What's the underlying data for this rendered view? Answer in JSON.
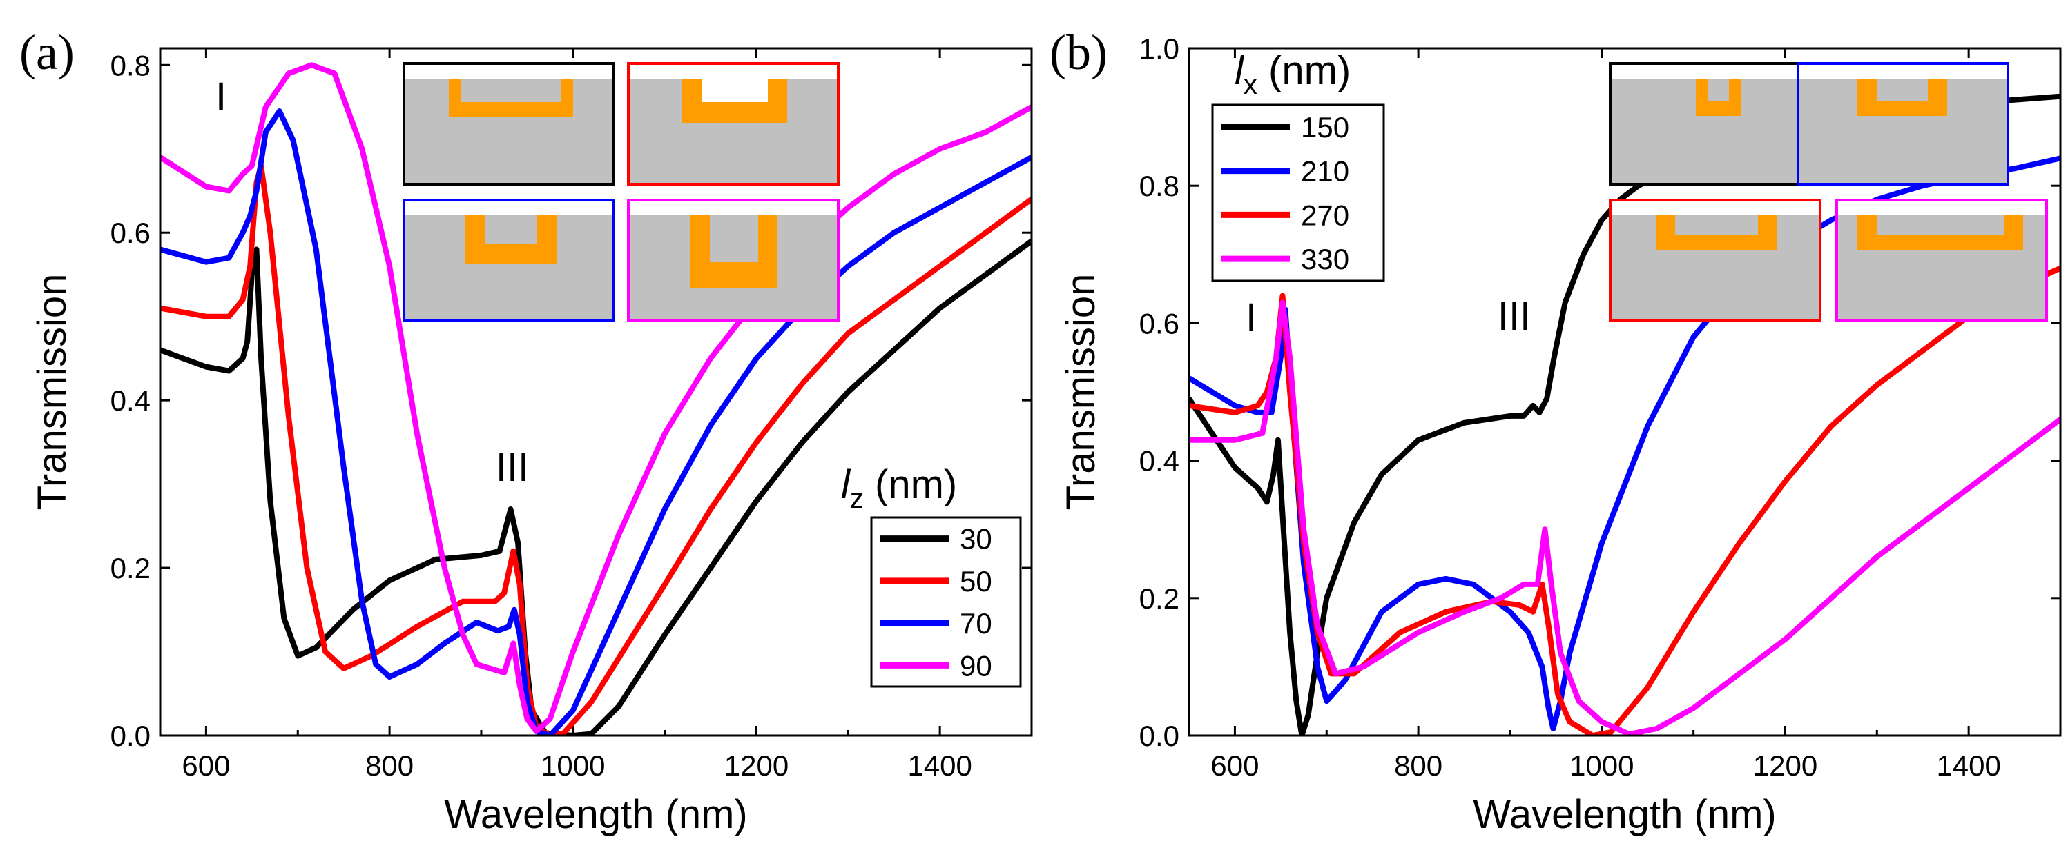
{
  "chart_data": [
    {
      "panel_label": "(a)",
      "type": "line",
      "xlabel": "Wavelength (nm)",
      "ylabel": "Transmission",
      "xlim": [
        550,
        1500
      ],
      "ylim": [
        0,
        0.82
      ],
      "xticks": [
        "600",
        "800",
        "1000",
        "1200",
        "1400"
      ],
      "yticks": [
        "0.0",
        "0.2",
        "0.4",
        "0.6",
        "0.8"
      ],
      "legend_title_var": "l",
      "legend_title_sub": "z",
      "legend_title_unit": " (nm)",
      "legend_location": "lower-right",
      "annotations": [
        "I",
        "III"
      ],
      "series": [
        {
          "name": "30",
          "color": "#000000",
          "points": [
            [
              550,
              0.46
            ],
            [
              600,
              0.44
            ],
            [
              625,
              0.435
            ],
            [
              640,
              0.45
            ],
            [
              645,
              0.47
            ],
            [
              650,
              0.55
            ],
            [
              655,
              0.58
            ],
            [
              660,
              0.45
            ],
            [
              670,
              0.28
            ],
            [
              685,
              0.14
            ],
            [
              700,
              0.095
            ],
            [
              720,
              0.105
            ],
            [
              760,
              0.15
            ],
            [
              800,
              0.185
            ],
            [
              850,
              0.21
            ],
            [
              900,
              0.215
            ],
            [
              920,
              0.22
            ],
            [
              932,
              0.27
            ],
            [
              940,
              0.23
            ],
            [
              948,
              0.1
            ],
            [
              955,
              0.03
            ],
            [
              970,
              0.003
            ],
            [
              1000,
              0.0
            ],
            [
              1020,
              0.002
            ],
            [
              1050,
              0.035
            ],
            [
              1100,
              0.12
            ],
            [
              1150,
              0.2
            ],
            [
              1200,
              0.28
            ],
            [
              1250,
              0.35
            ],
            [
              1300,
              0.41
            ],
            [
              1350,
              0.46
            ],
            [
              1400,
              0.51
            ],
            [
              1450,
              0.55
            ],
            [
              1500,
              0.59
            ]
          ]
        },
        {
          "name": "50",
          "color": "#ff0000",
          "points": [
            [
              550,
              0.51
            ],
            [
              600,
              0.5
            ],
            [
              625,
              0.5
            ],
            [
              640,
              0.52
            ],
            [
              648,
              0.56
            ],
            [
              655,
              0.66
            ],
            [
              660,
              0.68
            ],
            [
              670,
              0.6
            ],
            [
              690,
              0.38
            ],
            [
              710,
              0.2
            ],
            [
              730,
              0.1
            ],
            [
              750,
              0.08
            ],
            [
              780,
              0.095
            ],
            [
              830,
              0.13
            ],
            [
              880,
              0.16
            ],
            [
              915,
              0.16
            ],
            [
              925,
              0.17
            ],
            [
              935,
              0.22
            ],
            [
              942,
              0.18
            ],
            [
              950,
              0.06
            ],
            [
              960,
              0.01
            ],
            [
              975,
              0.0
            ],
            [
              990,
              0.003
            ],
            [
              1020,
              0.04
            ],
            [
              1100,
              0.18
            ],
            [
              1150,
              0.27
            ],
            [
              1200,
              0.35
            ],
            [
              1250,
              0.42
            ],
            [
              1300,
              0.48
            ],
            [
              1350,
              0.52
            ],
            [
              1400,
              0.56
            ],
            [
              1450,
              0.6
            ],
            [
              1500,
              0.64
            ]
          ]
        },
        {
          "name": "70",
          "color": "#0000ff",
          "points": [
            [
              550,
              0.58
            ],
            [
              600,
              0.565
            ],
            [
              625,
              0.57
            ],
            [
              640,
              0.6
            ],
            [
              648,
              0.62
            ],
            [
              655,
              0.65
            ],
            [
              665,
              0.72
            ],
            [
              680,
              0.745
            ],
            [
              695,
              0.71
            ],
            [
              720,
              0.58
            ],
            [
              750,
              0.32
            ],
            [
              770,
              0.16
            ],
            [
              785,
              0.085
            ],
            [
              800,
              0.07
            ],
            [
              830,
              0.085
            ],
            [
              860,
              0.11
            ],
            [
              895,
              0.135
            ],
            [
              918,
              0.125
            ],
            [
              930,
              0.13
            ],
            [
              936,
              0.15
            ],
            [
              942,
              0.12
            ],
            [
              950,
              0.04
            ],
            [
              960,
              0.005
            ],
            [
              975,
              0.0
            ],
            [
              1000,
              0.03
            ],
            [
              1050,
              0.15
            ],
            [
              1100,
              0.27
            ],
            [
              1150,
              0.37
            ],
            [
              1200,
              0.45
            ],
            [
              1250,
              0.51
            ],
            [
              1300,
              0.56
            ],
            [
              1350,
              0.6
            ],
            [
              1400,
              0.63
            ],
            [
              1450,
              0.66
            ],
            [
              1500,
              0.69
            ]
          ]
        },
        {
          "name": "90",
          "color": "#ff00ff",
          "points": [
            [
              550,
              0.69
            ],
            [
              600,
              0.655
            ],
            [
              625,
              0.65
            ],
            [
              640,
              0.67
            ],
            [
              650,
              0.68
            ],
            [
              665,
              0.75
            ],
            [
              690,
              0.79
            ],
            [
              715,
              0.8
            ],
            [
              740,
              0.79
            ],
            [
              770,
              0.7
            ],
            [
              800,
              0.56
            ],
            [
              830,
              0.36
            ],
            [
              860,
              0.2
            ],
            [
              880,
              0.12
            ],
            [
              895,
              0.085
            ],
            [
              910,
              0.08
            ],
            [
              925,
              0.075
            ],
            [
              935,
              0.11
            ],
            [
              942,
              0.06
            ],
            [
              950,
              0.02
            ],
            [
              960,
              0.005
            ],
            [
              975,
              0.02
            ],
            [
              1000,
              0.1
            ],
            [
              1050,
              0.24
            ],
            [
              1100,
              0.36
            ],
            [
              1150,
              0.45
            ],
            [
              1200,
              0.52
            ],
            [
              1250,
              0.58
            ],
            [
              1300,
              0.63
            ],
            [
              1350,
              0.67
            ],
            [
              1400,
              0.7
            ],
            [
              1450,
              0.72
            ],
            [
              1500,
              0.75
            ]
          ]
        }
      ]
    },
    {
      "panel_label": "(b)",
      "type": "line",
      "xlabel": "Wavelength (nm)",
      "ylabel": "Transmission",
      "xlim": [
        550,
        1500
      ],
      "ylim": [
        0,
        1.0
      ],
      "xticks": [
        "600",
        "800",
        "1000",
        "1200",
        "1400"
      ],
      "yticks": [
        "0.0",
        "0.2",
        "0.4",
        "0.6",
        "0.8",
        "1.0"
      ],
      "legend_title_var": "l",
      "legend_title_sub": "x",
      "legend_title_unit": " (nm)",
      "legend_location": "top-left",
      "annotations": [
        "I",
        "III"
      ],
      "series": [
        {
          "name": "150",
          "color": "#000000",
          "points": [
            [
              550,
              0.49
            ],
            [
              600,
              0.39
            ],
            [
              625,
              0.36
            ],
            [
              635,
              0.34
            ],
            [
              642,
              0.38
            ],
            [
              647,
              0.43
            ],
            [
              653,
              0.3
            ],
            [
              660,
              0.15
            ],
            [
              667,
              0.05
            ],
            [
              673,
              0.0
            ],
            [
              680,
              0.03
            ],
            [
              690,
              0.12
            ],
            [
              700,
              0.2
            ],
            [
              730,
              0.31
            ],
            [
              760,
              0.38
            ],
            [
              800,
              0.43
            ],
            [
              850,
              0.455
            ],
            [
              900,
              0.465
            ],
            [
              915,
              0.465
            ],
            [
              925,
              0.48
            ],
            [
              932,
              0.47
            ],
            [
              940,
              0.49
            ],
            [
              948,
              0.55
            ],
            [
              960,
              0.63
            ],
            [
              980,
              0.7
            ],
            [
              1000,
              0.75
            ],
            [
              1020,
              0.78
            ],
            [
              1040,
              0.8
            ],
            [
              1100,
              0.84
            ],
            [
              1200,
              0.88
            ],
            [
              1300,
              0.9
            ],
            [
              1400,
              0.92
            ],
            [
              1500,
              0.93
            ]
          ]
        },
        {
          "name": "210",
          "color": "#0000ff",
          "points": [
            [
              550,
              0.52
            ],
            [
              600,
              0.48
            ],
            [
              625,
              0.47
            ],
            [
              640,
              0.47
            ],
            [
              650,
              0.55
            ],
            [
              655,
              0.62
            ],
            [
              662,
              0.48
            ],
            [
              675,
              0.25
            ],
            [
              690,
              0.1
            ],
            [
              700,
              0.05
            ],
            [
              720,
              0.08
            ],
            [
              760,
              0.18
            ],
            [
              800,
              0.22
            ],
            [
              830,
              0.228
            ],
            [
              860,
              0.22
            ],
            [
              900,
              0.18
            ],
            [
              920,
              0.15
            ],
            [
              935,
              0.1
            ],
            [
              942,
              0.04
            ],
            [
              947,
              0.01
            ],
            [
              955,
              0.05
            ],
            [
              965,
              0.12
            ],
            [
              1000,
              0.28
            ],
            [
              1050,
              0.45
            ],
            [
              1100,
              0.58
            ],
            [
              1150,
              0.66
            ],
            [
              1200,
              0.71
            ],
            [
              1250,
              0.75
            ],
            [
              1300,
              0.78
            ],
            [
              1350,
              0.8
            ],
            [
              1400,
              0.815
            ],
            [
              1450,
              0.825
            ],
            [
              1500,
              0.84
            ]
          ]
        },
        {
          "name": "270",
          "color": "#ff0000",
          "points": [
            [
              550,
              0.48
            ],
            [
              600,
              0.47
            ],
            [
              625,
              0.48
            ],
            [
              635,
              0.5
            ],
            [
              645,
              0.55
            ],
            [
              652,
              0.64
            ],
            [
              660,
              0.5
            ],
            [
              675,
              0.28
            ],
            [
              690,
              0.15
            ],
            [
              705,
              0.09
            ],
            [
              730,
              0.09
            ],
            [
              780,
              0.15
            ],
            [
              830,
              0.18
            ],
            [
              880,
              0.195
            ],
            [
              910,
              0.19
            ],
            [
              925,
              0.18
            ],
            [
              935,
              0.22
            ],
            [
              942,
              0.16
            ],
            [
              952,
              0.06
            ],
            [
              965,
              0.02
            ],
            [
              990,
              0.0
            ],
            [
              1010,
              0.005
            ],
            [
              1050,
              0.07
            ],
            [
              1100,
              0.18
            ],
            [
              1150,
              0.28
            ],
            [
              1200,
              0.37
            ],
            [
              1250,
              0.45
            ],
            [
              1300,
              0.51
            ],
            [
              1350,
              0.56
            ],
            [
              1400,
              0.61
            ],
            [
              1450,
              0.65
            ],
            [
              1500,
              0.68
            ]
          ]
        },
        {
          "name": "330",
          "color": "#ff00ff",
          "points": [
            [
              550,
              0.43
            ],
            [
              600,
              0.43
            ],
            [
              630,
              0.44
            ],
            [
              645,
              0.55
            ],
            [
              652,
              0.63
            ],
            [
              660,
              0.55
            ],
            [
              675,
              0.3
            ],
            [
              690,
              0.16
            ],
            [
              710,
              0.09
            ],
            [
              740,
              0.1
            ],
            [
              800,
              0.15
            ],
            [
              850,
              0.18
            ],
            [
              890,
              0.2
            ],
            [
              915,
              0.22
            ],
            [
              930,
              0.22
            ],
            [
              938,
              0.3
            ],
            [
              945,
              0.22
            ],
            [
              955,
              0.12
            ],
            [
              975,
              0.05
            ],
            [
              1000,
              0.02
            ],
            [
              1030,
              0.002
            ],
            [
              1060,
              0.01
            ],
            [
              1100,
              0.04
            ],
            [
              1150,
              0.09
            ],
            [
              1200,
              0.14
            ],
            [
              1250,
              0.2
            ],
            [
              1300,
              0.26
            ],
            [
              1350,
              0.31
            ],
            [
              1400,
              0.36
            ],
            [
              1450,
              0.41
            ],
            [
              1500,
              0.46
            ]
          ]
        }
      ]
    }
  ]
}
